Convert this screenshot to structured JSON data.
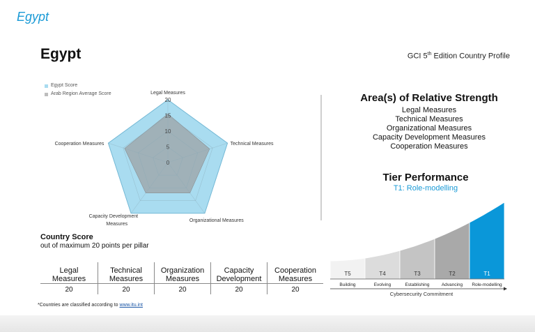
{
  "page": {
    "title_italic": "Egypt",
    "country_heading": "Egypt",
    "edition_pre": "GCI 5",
    "edition_sup": "th",
    "edition_post": " Edition Country Profile"
  },
  "legend": {
    "items": [
      {
        "label": "Egypt Score",
        "color": "#a9dcf0"
      },
      {
        "label": "Arab Region Average Score",
        "color": "#bdbdbd"
      }
    ]
  },
  "radar": {
    "axis_labels": [
      "Legal Measures",
      "Technical Measures",
      "Organizational Measures",
      "Capacity Development Measures",
      "Cooperation Measures"
    ],
    "ticks": [
      "0",
      "5",
      "10",
      "15",
      "20"
    ],
    "max": 20,
    "egypt_scores": [
      20,
      20,
      20,
      20,
      20
    ],
    "arab_average": [
      15.5,
      14,
      12,
      12,
      14.5
    ],
    "egypt_color": "#a9dcf0",
    "egypt_stroke": "#6cc2e6",
    "arab_color": "#9ea3a6"
  },
  "country_score": {
    "title": "Country Score",
    "subtitle": "out of maximum 20 points per pillar"
  },
  "score_table": {
    "headers": [
      [
        "Legal",
        "Measures"
      ],
      [
        "Technical",
        "Measures"
      ],
      [
        "Organization",
        "Measures"
      ],
      [
        "Capacity",
        "Development"
      ],
      [
        "Cooperation",
        "Measures"
      ]
    ],
    "values": [
      "20",
      "20",
      "20",
      "20",
      "20"
    ]
  },
  "footnote": {
    "text": "*Countries are classified according to ",
    "link": "www.itu.int"
  },
  "strength": {
    "title": "Area(s) of Relative Strength",
    "items": [
      "Legal Measures",
      "Technical Measures",
      "Organizational Measures",
      "Capacity Development Measures",
      "Cooperation Measures"
    ]
  },
  "tier": {
    "title": "Tier Performance",
    "subtitle": "T1: Role-modelling",
    "tiers": [
      {
        "code": "T5",
        "label": "Building",
        "color": "#f2f2f2"
      },
      {
        "code": "T4",
        "label": "Evolving",
        "color": "#dcdcdc"
      },
      {
        "code": "T3",
        "label": "Establishing",
        "color": "#c4c4c4"
      },
      {
        "code": "T2",
        "label": "Advancing",
        "color": "#a9a9a9"
      },
      {
        "code": "T1",
        "label": "Role-modelling",
        "color": "#0a97d9"
      }
    ],
    "active": "T1",
    "axis_label": "Cybersecurity Commitment"
  }
}
